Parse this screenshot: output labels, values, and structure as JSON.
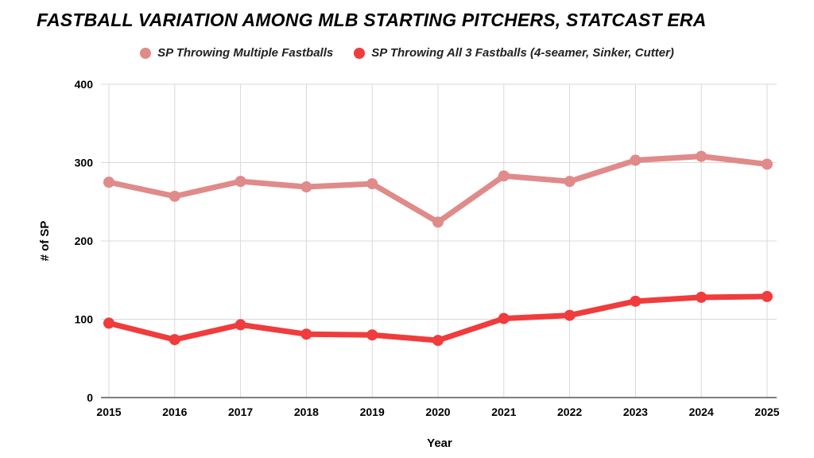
{
  "chart_data": {
    "type": "line",
    "title": "FASTBALL VARIATION AMONG MLB STARTING PITCHERS, STATCAST ERA",
    "xlabel": "Year",
    "ylabel": "# of SP",
    "ylim": [
      0,
      400
    ],
    "yticks": [
      0,
      100,
      200,
      300,
      400
    ],
    "grid": true,
    "legend_position": "top",
    "x": [
      "2015",
      "2016",
      "2017",
      "2018",
      "2019",
      "2020",
      "2021",
      "2022",
      "2023",
      "2024",
      "2025"
    ],
    "series": [
      {
        "name": "SP Throwing Multiple Fastballs",
        "color": "#e08a8a",
        "values": [
          275,
          257,
          276,
          269,
          273,
          224,
          283,
          276,
          303,
          308,
          298
        ]
      },
      {
        "name": "SP Throwing All 3 Fastballs (4-seamer, Sinker, Cutter)",
        "color": "#f03c3c",
        "values": [
          95,
          74,
          93,
          81,
          80,
          73,
          101,
          105,
          123,
          128,
          129
        ]
      }
    ]
  }
}
